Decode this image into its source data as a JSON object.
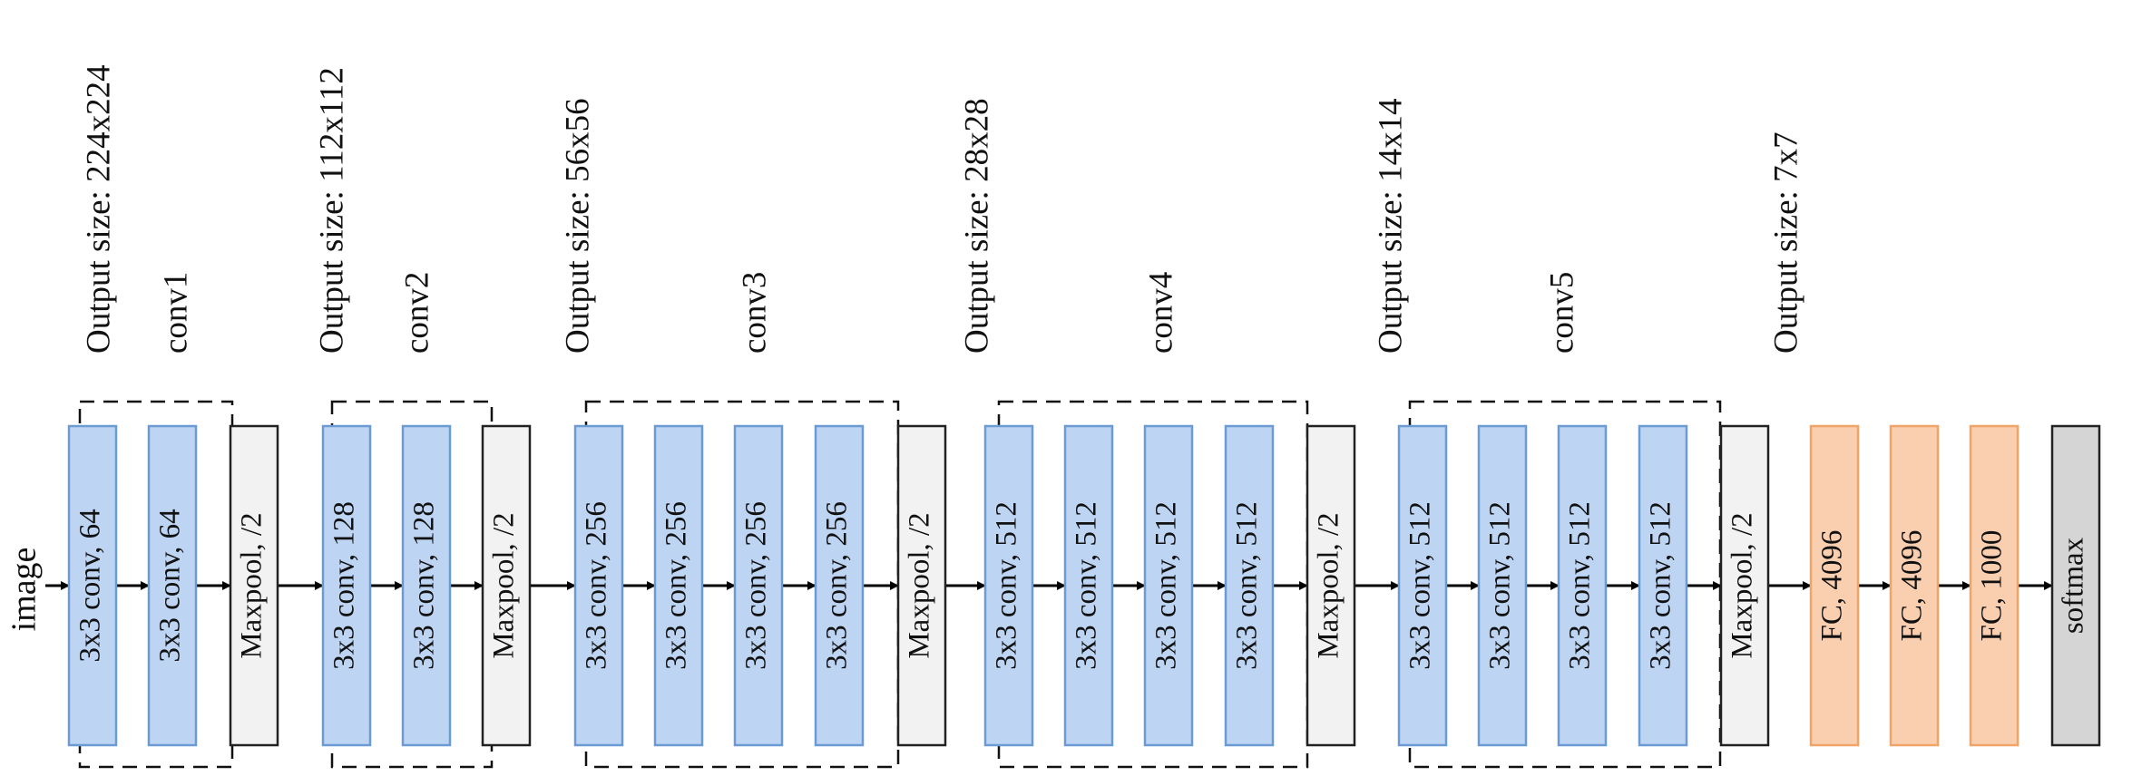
{
  "input_label": "image",
  "colors": {
    "conv_fill": "#bdd5f3",
    "conv_stroke": "#6b9bd2",
    "pool_fill": "#f2f2f2",
    "pool_stroke": "#222222",
    "fc_fill": "#f9cfb0",
    "fc_stroke": "#f0a467",
    "softmax_fill": "#d5d5d5",
    "softmax_stroke": "#222222"
  },
  "groups": [
    {
      "id": "conv1",
      "label": "conv1",
      "output_size": "Output size: 224x224"
    },
    {
      "id": "conv2",
      "label": "conv2",
      "output_size": "Output size: 112x112"
    },
    {
      "id": "conv3",
      "label": "conv3",
      "output_size": "Output size: 56x56"
    },
    {
      "id": "conv4",
      "label": "conv4",
      "output_size": "Output size: 28x28"
    },
    {
      "id": "conv5",
      "label": "conv5",
      "output_size": "Output size: 14x14"
    },
    {
      "id": "fc",
      "label": "",
      "output_size": "Output size: 7x7"
    }
  ],
  "layers": [
    {
      "type": "conv",
      "label": "3x3 conv, 64",
      "group": "conv1"
    },
    {
      "type": "conv",
      "label": "3x3 conv, 64",
      "group": "conv1"
    },
    {
      "type": "pool",
      "label": "Maxpool, /2"
    },
    {
      "type": "conv",
      "label": "3x3 conv, 128",
      "group": "conv2"
    },
    {
      "type": "conv",
      "label": "3x3 conv, 128",
      "group": "conv2"
    },
    {
      "type": "pool",
      "label": "Maxpool, /2"
    },
    {
      "type": "conv",
      "label": "3x3 conv, 256",
      "group": "conv3"
    },
    {
      "type": "conv",
      "label": "3x3 conv, 256",
      "group": "conv3"
    },
    {
      "type": "conv",
      "label": "3x3 conv, 256",
      "group": "conv3"
    },
    {
      "type": "conv",
      "label": "3x3 conv, 256",
      "group": "conv3"
    },
    {
      "type": "pool",
      "label": "Maxpool, /2"
    },
    {
      "type": "conv",
      "label": "3x3 conv, 512",
      "group": "conv4"
    },
    {
      "type": "conv",
      "label": "3x3 conv, 512",
      "group": "conv4"
    },
    {
      "type": "conv",
      "label": "3x3 conv, 512",
      "group": "conv4"
    },
    {
      "type": "conv",
      "label": "3x3 conv, 512",
      "group": "conv4"
    },
    {
      "type": "pool",
      "label": "Maxpool, /2"
    },
    {
      "type": "conv",
      "label": "3x3 conv, 512",
      "group": "conv5"
    },
    {
      "type": "conv",
      "label": "3x3 conv, 512",
      "group": "conv5"
    },
    {
      "type": "conv",
      "label": "3x3 conv, 512",
      "group": "conv5"
    },
    {
      "type": "conv",
      "label": "3x3 conv, 512",
      "group": "conv5"
    },
    {
      "type": "pool",
      "label": "Maxpool, /2"
    },
    {
      "type": "fc",
      "label": "FC, 4096"
    },
    {
      "type": "fc",
      "label": "FC, 4096"
    },
    {
      "type": "fc",
      "label": "FC, 1000"
    },
    {
      "type": "softmax",
      "label": "softmax"
    }
  ]
}
